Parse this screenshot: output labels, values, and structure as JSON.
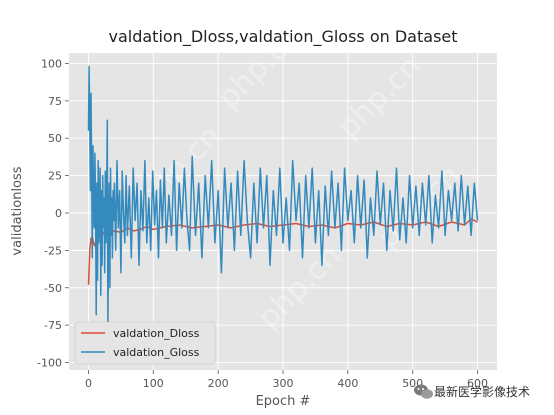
{
  "chart_data": {
    "type": "line",
    "title": "valdation_Dloss,valdation_Gloss on Dataset",
    "xlabel": "Epoch #",
    "ylabel": "validationloss",
    "xlim": [
      -30,
      630
    ],
    "ylim": [
      -105,
      107
    ],
    "xticks": [
      0,
      100,
      200,
      300,
      400,
      500,
      600
    ],
    "yticks": [
      -100,
      -75,
      -50,
      -25,
      0,
      25,
      50,
      75,
      100
    ],
    "grid": true,
    "legend_position": "lower-left",
    "style": "ggplot",
    "series": [
      {
        "name": "valdation_Dloss",
        "color": "#E24A33",
        "x": [
          0,
          2,
          4,
          6,
          8,
          10,
          12,
          15,
          20,
          25,
          30,
          40,
          50,
          60,
          70,
          80,
          90,
          100,
          120,
          140,
          160,
          180,
          200,
          220,
          240,
          260,
          280,
          300,
          320,
          340,
          360,
          380,
          400,
          420,
          440,
          460,
          480,
          500,
          520,
          540,
          560,
          580,
          590,
          600
        ],
        "y": [
          -48,
          -25,
          -17,
          -16,
          -20,
          -22,
          -18,
          -14,
          -16,
          -12,
          -14,
          -12,
          -13,
          -10,
          -12,
          -11,
          -9,
          -11,
          -9,
          -8,
          -10,
          -9,
          -8,
          -10,
          -8,
          -7,
          -9,
          -8,
          -7,
          -9,
          -8,
          -10,
          -7,
          -8,
          -6,
          -9,
          -7,
          -8,
          -6,
          -9,
          -6,
          -8,
          -4,
          -6
        ]
      },
      {
        "name": "valdation_Gloss",
        "color": "#348ABD",
        "x": [
          0,
          1,
          2,
          3,
          4,
          5,
          6,
          7,
          8,
          9,
          10,
          11,
          12,
          13,
          14,
          15,
          16,
          17,
          18,
          19,
          20,
          21,
          22,
          23,
          24,
          25,
          26,
          27,
          28,
          29,
          30,
          31,
          32,
          33,
          34,
          35,
          36,
          37,
          38,
          39,
          40,
          42,
          44,
          46,
          48,
          50,
          52,
          54,
          56,
          58,
          60,
          63,
          66,
          69,
          72,
          75,
          78,
          81,
          84,
          87,
          90,
          93,
          96,
          99,
          102,
          105,
          108,
          111,
          114,
          117,
          120,
          124,
          128,
          132,
          136,
          140,
          144,
          148,
          152,
          156,
          160,
          165,
          170,
          175,
          180,
          185,
          190,
          195,
          200,
          205,
          210,
          215,
          220,
          225,
          230,
          235,
          240,
          245,
          250,
          255,
          260,
          265,
          270,
          275,
          280,
          285,
          290,
          295,
          300,
          305,
          310,
          315,
          320,
          325,
          330,
          335,
          340,
          345,
          350,
          355,
          360,
          365,
          370,
          375,
          380,
          385,
          390,
          395,
          400,
          405,
          410,
          415,
          420,
          425,
          430,
          435,
          440,
          445,
          450,
          455,
          460,
          465,
          470,
          475,
          480,
          485,
          490,
          495,
          500,
          505,
          510,
          515,
          520,
          525,
          530,
          535,
          540,
          545,
          550,
          555,
          560,
          565,
          570,
          575,
          580,
          585,
          590,
          595,
          600
        ],
        "y": [
          55,
          98,
          60,
          15,
          80,
          25,
          -30,
          45,
          0,
          -10,
          40,
          5,
          -68,
          20,
          -45,
          35,
          -20,
          5,
          30,
          -55,
          15,
          -35,
          25,
          -10,
          10,
          -40,
          28,
          -20,
          5,
          62,
          -75,
          -10,
          20,
          -50,
          30,
          -15,
          10,
          -30,
          15,
          -5,
          20,
          -25,
          35,
          -10,
          15,
          -40,
          28,
          0,
          -20,
          25,
          -15,
          18,
          -30,
          30,
          -5,
          20,
          -35,
          15,
          -12,
          35,
          -20,
          10,
          -25,
          28,
          -8,
          15,
          -30,
          22,
          -10,
          30,
          -20,
          12,
          -15,
          35,
          -25,
          20,
          -10,
          30,
          -5,
          -25,
          38,
          -15,
          20,
          -30,
          25,
          -10,
          35,
          -20,
          15,
          -40,
          30,
          -10,
          20,
          -25,
          28,
          -15,
          35,
          -5,
          -30,
          20,
          -20,
          30,
          -10,
          25,
          -35,
          15,
          -15,
          30,
          -20,
          10,
          -25,
          35,
          -5,
          20,
          -30,
          25,
          -10,
          30,
          -20,
          15,
          -35,
          18,
          -15,
          28,
          -10,
          20,
          -25,
          30,
          -5,
          15,
          -20,
          25,
          -10,
          22,
          -30,
          10,
          -15,
          28,
          -8,
          20,
          -25,
          15,
          -12,
          30,
          -18,
          10,
          -20,
          25,
          -10,
          18,
          -15,
          20,
          -8,
          25,
          -20,
          12,
          -10,
          28,
          -15,
          15,
          -5,
          20,
          -12,
          25,
          -8,
          18,
          -15,
          20,
          -5
        ]
      }
    ]
  },
  "watermark_text": "php.cn",
  "footer_badge": {
    "icon": "wechat-icon",
    "text": "最新医学影像技术"
  }
}
